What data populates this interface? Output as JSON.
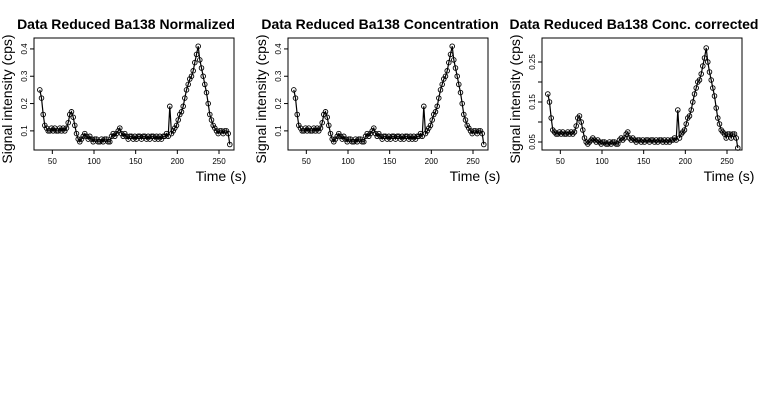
{
  "chart_data": [
    {
      "type": "scatter",
      "title": "Data Reduced Ba138 Normalized",
      "xlabel": "Time (s)",
      "ylabel": "Signal intensity (cps)",
      "xlim": [
        28,
        268
      ],
      "ylim": [
        0.03,
        0.44
      ],
      "xticks": [
        50,
        100,
        150,
        200,
        250
      ],
      "yticks": [
        0.1,
        0.2,
        0.3,
        0.4
      ],
      "ytick_labels": [
        "0.1",
        "0.2",
        "0.3",
        "0.4"
      ],
      "grid": false,
      "legend": "none",
      "x": [
        35,
        37,
        39,
        41,
        43,
        45,
        47,
        49,
        51,
        53,
        55,
        57,
        59,
        61,
        63,
        65,
        67,
        69,
        71,
        73,
        75,
        77,
        79,
        81,
        83,
        85,
        87,
        89,
        91,
        93,
        95,
        97,
        99,
        101,
        103,
        105,
        107,
        109,
        111,
        113,
        115,
        117,
        119,
        121,
        123,
        125,
        127,
        129,
        131,
        133,
        135,
        137,
        139,
        141,
        143,
        145,
        147,
        149,
        151,
        153,
        155,
        157,
        159,
        161,
        163,
        165,
        167,
        169,
        171,
        173,
        175,
        177,
        179,
        181,
        183,
        185,
        187,
        189,
        191,
        193,
        195,
        197,
        199,
        201,
        203,
        205,
        207,
        209,
        211,
        213,
        215,
        217,
        219,
        221,
        223,
        225,
        227,
        229,
        231,
        233,
        235,
        237,
        239,
        241,
        243,
        245,
        247,
        249,
        251,
        253,
        255,
        257,
        259,
        261,
        263
      ],
      "values": [
        0.25,
        0.22,
        0.16,
        0.12,
        0.11,
        0.1,
        0.1,
        0.11,
        0.1,
        0.11,
        0.1,
        0.1,
        0.11,
        0.1,
        0.11,
        0.1,
        0.11,
        0.13,
        0.16,
        0.17,
        0.15,
        0.12,
        0.09,
        0.07,
        0.06,
        0.07,
        0.08,
        0.09,
        0.08,
        0.07,
        0.08,
        0.07,
        0.06,
        0.07,
        0.07,
        0.06,
        0.06,
        0.07,
        0.06,
        0.07,
        0.07,
        0.06,
        0.06,
        0.08,
        0.09,
        0.08,
        0.09,
        0.1,
        0.11,
        0.09,
        0.08,
        0.09,
        0.08,
        0.07,
        0.08,
        0.08,
        0.07,
        0.08,
        0.07,
        0.08,
        0.08,
        0.07,
        0.08,
        0.08,
        0.07,
        0.08,
        0.07,
        0.08,
        0.08,
        0.07,
        0.08,
        0.07,
        0.08,
        0.07,
        0.08,
        0.08,
        0.09,
        0.08,
        0.19,
        0.09,
        0.1,
        0.11,
        0.12,
        0.14,
        0.16,
        0.17,
        0.19,
        0.22,
        0.25,
        0.27,
        0.29,
        0.3,
        0.32,
        0.35,
        0.38,
        0.41,
        0.36,
        0.33,
        0.3,
        0.27,
        0.24,
        0.2,
        0.16,
        0.14,
        0.12,
        0.11,
        0.1,
        0.09,
        0.1,
        0.1,
        0.09,
        0.1,
        0.1,
        0.09,
        0.05
      ]
    },
    {
      "type": "scatter",
      "title": "Data Reduced Ba138 Concentration",
      "xlabel": "Time (s)",
      "ylabel": "Signal intensity (cps)",
      "xlim": [
        28,
        268
      ],
      "ylim": [
        0.03,
        0.44
      ],
      "xticks": [
        50,
        100,
        150,
        200,
        250
      ],
      "yticks": [
        0.1,
        0.2,
        0.3,
        0.4
      ],
      "ytick_labels": [
        "0.1",
        "0.2",
        "0.3",
        "0.4"
      ],
      "grid": false,
      "legend": "none",
      "x": [
        35,
        37,
        39,
        41,
        43,
        45,
        47,
        49,
        51,
        53,
        55,
        57,
        59,
        61,
        63,
        65,
        67,
        69,
        71,
        73,
        75,
        77,
        79,
        81,
        83,
        85,
        87,
        89,
        91,
        93,
        95,
        97,
        99,
        101,
        103,
        105,
        107,
        109,
        111,
        113,
        115,
        117,
        119,
        121,
        123,
        125,
        127,
        129,
        131,
        133,
        135,
        137,
        139,
        141,
        143,
        145,
        147,
        149,
        151,
        153,
        155,
        157,
        159,
        161,
        163,
        165,
        167,
        169,
        171,
        173,
        175,
        177,
        179,
        181,
        183,
        185,
        187,
        189,
        191,
        193,
        195,
        197,
        199,
        201,
        203,
        205,
        207,
        209,
        211,
        213,
        215,
        217,
        219,
        221,
        223,
        225,
        227,
        229,
        231,
        233,
        235,
        237,
        239,
        241,
        243,
        245,
        247,
        249,
        251,
        253,
        255,
        257,
        259,
        261,
        263
      ],
      "values": [
        0.25,
        0.22,
        0.16,
        0.12,
        0.11,
        0.1,
        0.1,
        0.11,
        0.1,
        0.11,
        0.1,
        0.1,
        0.11,
        0.1,
        0.11,
        0.1,
        0.11,
        0.13,
        0.16,
        0.17,
        0.15,
        0.12,
        0.09,
        0.07,
        0.06,
        0.07,
        0.08,
        0.09,
        0.08,
        0.07,
        0.08,
        0.07,
        0.06,
        0.07,
        0.07,
        0.06,
        0.06,
        0.07,
        0.06,
        0.07,
        0.07,
        0.06,
        0.06,
        0.08,
        0.09,
        0.08,
        0.09,
        0.1,
        0.11,
        0.09,
        0.08,
        0.09,
        0.08,
        0.07,
        0.08,
        0.08,
        0.07,
        0.08,
        0.07,
        0.08,
        0.08,
        0.07,
        0.08,
        0.08,
        0.07,
        0.08,
        0.07,
        0.08,
        0.08,
        0.07,
        0.08,
        0.07,
        0.08,
        0.07,
        0.08,
        0.08,
        0.09,
        0.08,
        0.19,
        0.09,
        0.1,
        0.11,
        0.12,
        0.14,
        0.16,
        0.17,
        0.19,
        0.22,
        0.25,
        0.27,
        0.29,
        0.3,
        0.32,
        0.35,
        0.38,
        0.41,
        0.36,
        0.33,
        0.3,
        0.27,
        0.24,
        0.2,
        0.16,
        0.14,
        0.12,
        0.11,
        0.1,
        0.09,
        0.1,
        0.1,
        0.09,
        0.1,
        0.1,
        0.09,
        0.05
      ]
    },
    {
      "type": "scatter",
      "title": "Data Reduced Ba138 Conc. corrected",
      "xlabel": "Time (s)",
      "ylabel": "Signal intensity (cps)",
      "xlim": [
        28,
        268
      ],
      "ylim": [
        0.03,
        0.31
      ],
      "xticks": [
        50,
        100,
        150,
        200,
        250
      ],
      "yticks": [
        0.05,
        0.1,
        0.15,
        0.2,
        0.25
      ],
      "ytick_labels": [
        "0.05",
        "0.15",
        "0.25"
      ],
      "ytick_label_values": [
        0.05,
        0.15,
        0.25
      ],
      "grid": false,
      "legend": "none",
      "x": [
        35,
        37,
        39,
        41,
        43,
        45,
        47,
        49,
        51,
        53,
        55,
        57,
        59,
        61,
        63,
        65,
        67,
        69,
        71,
        73,
        75,
        77,
        79,
        81,
        83,
        85,
        87,
        89,
        91,
        93,
        95,
        97,
        99,
        101,
        103,
        105,
        107,
        109,
        111,
        113,
        115,
        117,
        119,
        121,
        123,
        125,
        127,
        129,
        131,
        133,
        135,
        137,
        139,
        141,
        143,
        145,
        147,
        149,
        151,
        153,
        155,
        157,
        159,
        161,
        163,
        165,
        167,
        169,
        171,
        173,
        175,
        177,
        179,
        181,
        183,
        185,
        187,
        189,
        191,
        193,
        195,
        197,
        199,
        201,
        203,
        205,
        207,
        209,
        211,
        213,
        215,
        217,
        219,
        221,
        223,
        225,
        227,
        229,
        231,
        233,
        235,
        237,
        239,
        241,
        243,
        245,
        247,
        249,
        251,
        253,
        255,
        257,
        259,
        261,
        263
      ],
      "values": [
        0.17,
        0.15,
        0.11,
        0.08,
        0.075,
        0.07,
        0.07,
        0.075,
        0.07,
        0.075,
        0.07,
        0.07,
        0.075,
        0.07,
        0.075,
        0.07,
        0.075,
        0.09,
        0.11,
        0.115,
        0.1,
        0.08,
        0.06,
        0.05,
        0.045,
        0.05,
        0.055,
        0.06,
        0.055,
        0.05,
        0.055,
        0.05,
        0.045,
        0.05,
        0.05,
        0.045,
        0.045,
        0.05,
        0.045,
        0.05,
        0.05,
        0.045,
        0.045,
        0.055,
        0.06,
        0.055,
        0.06,
        0.07,
        0.075,
        0.06,
        0.055,
        0.06,
        0.055,
        0.05,
        0.055,
        0.055,
        0.05,
        0.055,
        0.05,
        0.055,
        0.055,
        0.05,
        0.055,
        0.055,
        0.05,
        0.055,
        0.05,
        0.055,
        0.055,
        0.05,
        0.055,
        0.05,
        0.055,
        0.05,
        0.055,
        0.055,
        0.06,
        0.055,
        0.13,
        0.06,
        0.07,
        0.075,
        0.08,
        0.095,
        0.11,
        0.115,
        0.13,
        0.15,
        0.17,
        0.185,
        0.2,
        0.205,
        0.22,
        0.24,
        0.26,
        0.285,
        0.25,
        0.225,
        0.205,
        0.185,
        0.165,
        0.135,
        0.11,
        0.095,
        0.08,
        0.075,
        0.07,
        0.06,
        0.07,
        0.07,
        0.06,
        0.07,
        0.07,
        0.06,
        0.035
      ]
    }
  ]
}
